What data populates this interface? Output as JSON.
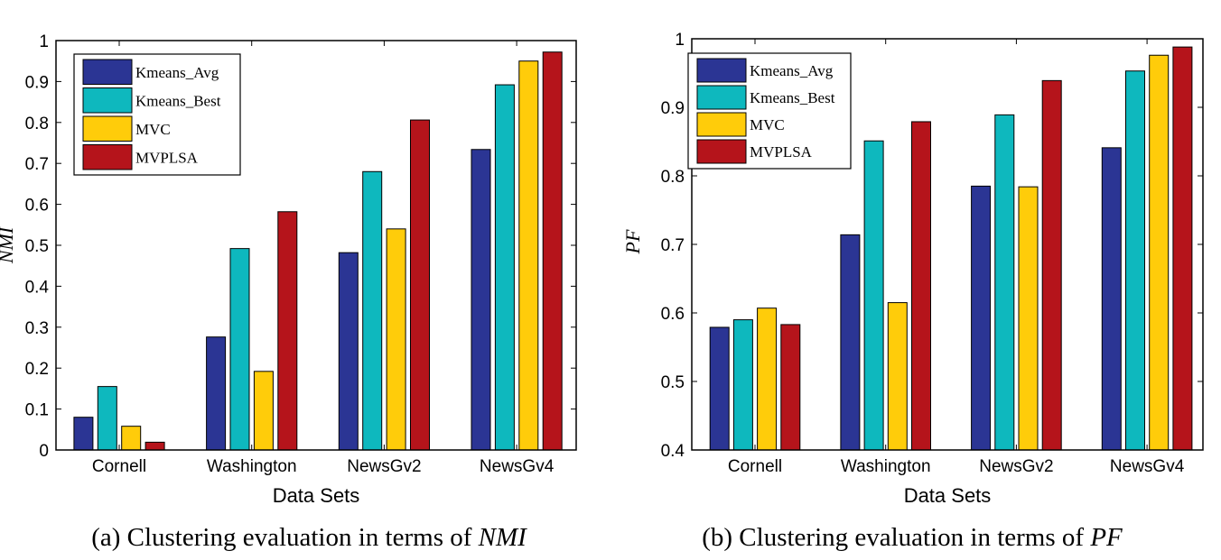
{
  "chart_data": [
    {
      "type": "bar",
      "categories": [
        "Cornell",
        "Washington",
        "NewsGv2",
        "NewsGv4"
      ],
      "series": [
        {
          "name": "Kmeans_Avg",
          "values": [
            0.08,
            0.276,
            0.482,
            0.734
          ]
        },
        {
          "name": "Kmeans_Best",
          "values": [
            0.155,
            0.492,
            0.68,
            0.892
          ]
        },
        {
          "name": "MVC",
          "values": [
            0.058,
            0.192,
            0.54,
            0.95
          ]
        },
        {
          "name": "MVPLSA",
          "values": [
            0.019,
            0.582,
            0.806,
            0.972
          ]
        }
      ],
      "xlabel": "Data Sets",
      "ylabel": "NMI",
      "ylim": [
        0,
        1
      ],
      "yticks": [
        "0",
        "0.1",
        "0.2",
        "0.3",
        "0.4",
        "0.5",
        "0.6",
        "0.7",
        "0.8",
        "0.9",
        "1"
      ],
      "legend": "top-left",
      "grid": false
    },
    {
      "type": "bar",
      "categories": [
        "Cornell",
        "Washington",
        "NewsGv2",
        "NewsGv4"
      ],
      "series": [
        {
          "name": "Kmeans_Avg",
          "values": [
            0.579,
            0.714,
            0.785,
            0.841
          ]
        },
        {
          "name": "Kmeans_Best",
          "values": [
            0.59,
            0.851,
            0.889,
            0.953
          ]
        },
        {
          "name": "MVC",
          "values": [
            0.607,
            0.615,
            0.784,
            0.976
          ]
        },
        {
          "name": "MVPLSA",
          "values": [
            0.583,
            0.879,
            0.939,
            0.988
          ]
        }
      ],
      "xlabel": "Data Sets",
      "ylabel": "PF",
      "ylim": [
        0.4,
        1
      ],
      "yticks": [
        "0.4",
        "0.5",
        "0.6",
        "0.7",
        "0.8",
        "0.9",
        "1"
      ],
      "legend": "top-left",
      "grid": false
    }
  ],
  "colors": {
    "Kmeans_Avg": "#2B3594",
    "Kmeans_Best": "#0EB8BE",
    "MVC": "#FFCC0A",
    "MVPLSA": "#B5141B"
  },
  "captions": [
    {
      "prefix": "(a) Clustering evaluation in terms of ",
      "em": "NMI"
    },
    {
      "prefix": "(b) Clustering evaluation in terms of ",
      "em": "PF"
    }
  ]
}
